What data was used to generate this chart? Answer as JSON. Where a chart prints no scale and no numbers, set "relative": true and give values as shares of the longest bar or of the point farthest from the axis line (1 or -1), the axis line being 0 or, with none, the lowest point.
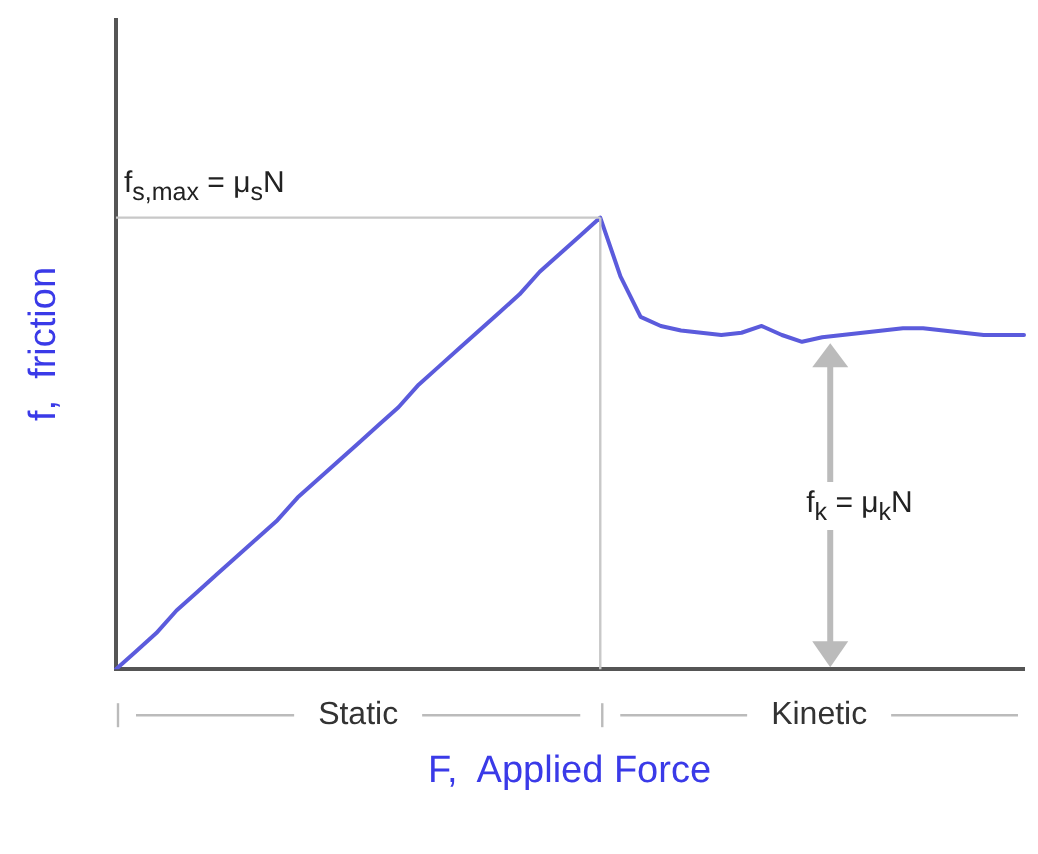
{
  "chart_data": {
    "type": "line",
    "relative": true,
    "xlabel": "F,  Applied Force",
    "ylabel": "f,  friction",
    "categories": [
      null,
      null,
      null,
      null,
      null,
      null,
      null,
      null,
      null,
      null,
      null,
      null,
      null,
      null,
      null,
      null,
      null,
      null,
      null,
      null,
      null,
      null,
      null,
      null,
      null,
      null,
      null,
      null,
      null,
      null,
      null,
      null,
      null,
      null,
      null,
      null,
      null,
      null,
      null,
      null,
      null,
      null,
      null,
      null,
      null,
      null
    ],
    "series": [
      {
        "color": "#5b5bdc",
        "values": [
          0,
          0.04,
          0.08,
          0.13,
          0.17,
          0.21,
          0.25,
          0.29,
          0.33,
          0.38,
          0.42,
          0.46,
          0.5,
          0.54,
          0.58,
          0.63,
          0.67,
          0.71,
          0.75,
          0.79,
          0.83,
          0.88,
          0.92,
          0.96,
          1,
          0.87,
          0.78,
          0.76,
          0.75,
          0.745,
          0.74,
          0.745,
          0.76,
          0.74,
          0.725,
          0.735,
          0.74,
          0.745,
          0.75,
          0.755,
          0.755,
          0.75,
          0.745,
          0.74,
          0.74,
          0.74
        ]
      }
    ],
    "ref_lines": [
      {
        "axis": "y",
        "value": 1,
        "label": "f$_{s,max}$ = μ$_{s}$N",
        "color": "#c8c8c8"
      }
    ],
    "annotations": [
      "f$_{k}$ = μ$_{k}$N",
      "Static",
      "Kinetic"
    ],
    "grid": false,
    "legend": false,
    "marker": "none",
    "line_style": "solid"
  }
}
